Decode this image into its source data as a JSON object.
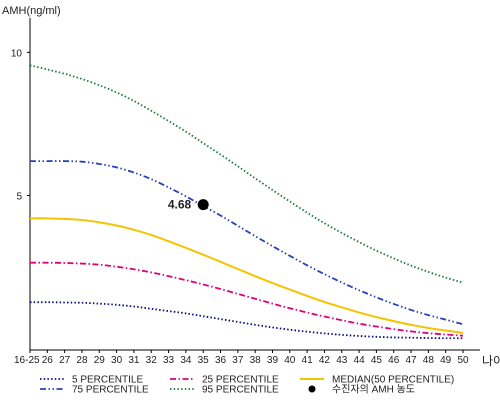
{
  "chart_data": {
    "type": "line",
    "ylabel": "AMH(ng/ml)",
    "xlabel": "나이",
    "categories": [
      "16-25",
      "26",
      "27",
      "28",
      "29",
      "30",
      "31",
      "32",
      "33",
      "34",
      "35",
      "36",
      "37",
      "38",
      "39",
      "40",
      "41",
      "42",
      "43",
      "44",
      "45",
      "46",
      "47",
      "48",
      "49",
      "50"
    ],
    "yticks": [
      5,
      10
    ],
    "ylim": [
      -0.4,
      11.2
    ],
    "series": [
      {
        "name": "5 PERCENTILE",
        "color": "#0a0a7a",
        "dash": "dot",
        "values": [
          1.27,
          1.27,
          1.26,
          1.25,
          1.22,
          1.18,
          1.12,
          1.04,
          0.96,
          0.88,
          0.78,
          0.68,
          0.58,
          0.48,
          0.39,
          0.31,
          0.24,
          0.18,
          0.13,
          0.09,
          0.06,
          0.04,
          0.03,
          0.02,
          0.01,
          0.01
        ]
      },
      {
        "name": "25 PERCENTILE",
        "color": "#e0007a",
        "dash": "dashdot",
        "values": [
          2.65,
          2.65,
          2.64,
          2.62,
          2.58,
          2.51,
          2.42,
          2.31,
          2.18,
          2.04,
          1.89,
          1.73,
          1.56,
          1.39,
          1.22,
          1.06,
          0.91,
          0.77,
          0.64,
          0.52,
          0.42,
          0.33,
          0.25,
          0.19,
          0.14,
          0.1
        ]
      },
      {
        "name": "MEDIAN(50 PERCENTILE)",
        "color": "#f5c400",
        "dash": "solid",
        "values": [
          4.2,
          4.2,
          4.18,
          4.14,
          4.06,
          3.95,
          3.8,
          3.62,
          3.4,
          3.17,
          2.93,
          2.68,
          2.43,
          2.18,
          1.94,
          1.71,
          1.49,
          1.28,
          1.09,
          0.91,
          0.75,
          0.61,
          0.48,
          0.37,
          0.28,
          0.2
        ]
      },
      {
        "name": "75 PERCENTILE",
        "color": "#2840b8",
        "dash": "dashdotdot",
        "values": [
          6.2,
          6.2,
          6.2,
          6.18,
          6.1,
          5.98,
          5.8,
          5.57,
          5.28,
          4.97,
          4.63,
          4.3,
          3.94,
          3.58,
          3.23,
          2.89,
          2.56,
          2.25,
          1.96,
          1.69,
          1.44,
          1.21,
          1.0,
          0.82,
          0.66,
          0.5
        ]
      },
      {
        "name": "95 PERCENTILE",
        "color": "#1d7a3a",
        "dash": "dot",
        "values": [
          9.55,
          9.4,
          9.25,
          9.07,
          8.85,
          8.6,
          8.3,
          7.96,
          7.6,
          7.23,
          6.83,
          6.43,
          6.02,
          5.6,
          5.19,
          4.79,
          4.4,
          4.03,
          3.69,
          3.37,
          3.07,
          2.8,
          2.55,
          2.33,
          2.13,
          1.95
        ]
      }
    ],
    "marker": {
      "name": "수진자의 AMH 농도",
      "x": "35",
      "y": 4.68,
      "label": "4.68",
      "color": "#000000"
    },
    "legend_position": "bottom"
  }
}
